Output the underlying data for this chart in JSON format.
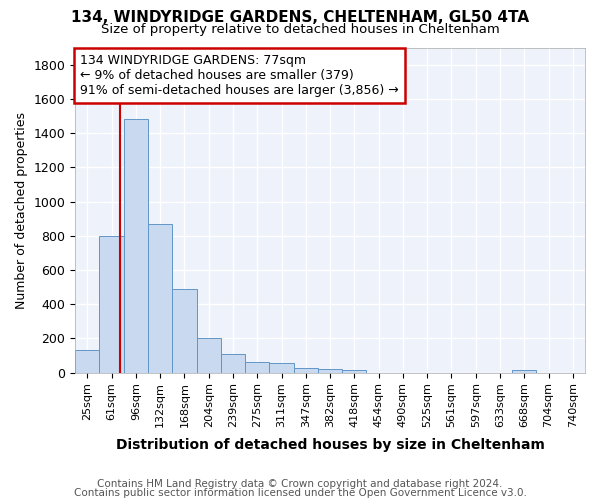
{
  "title1": "134, WINDYRIDGE GARDENS, CHELTENHAM, GL50 4TA",
  "title2": "Size of property relative to detached houses in Cheltenham",
  "xlabel": "Distribution of detached houses by size in Cheltenham",
  "ylabel": "Number of detached properties",
  "categories": [
    "25sqm",
    "61sqm",
    "96sqm",
    "132sqm",
    "168sqm",
    "204sqm",
    "239sqm",
    "275sqm",
    "311sqm",
    "347sqm",
    "382sqm",
    "418sqm",
    "454sqm",
    "490sqm",
    "525sqm",
    "561sqm",
    "597sqm",
    "633sqm",
    "668sqm",
    "704sqm",
    "740sqm"
  ],
  "values": [
    130,
    800,
    1480,
    870,
    490,
    205,
    110,
    65,
    55,
    30,
    20,
    15,
    0,
    0,
    0,
    0,
    0,
    0,
    15,
    0,
    0
  ],
  "bar_color": "#c9d9ef",
  "bar_edge_color": "#6096c8",
  "red_line_x": 1.35,
  "annotation_text": "134 WINDYRIDGE GARDENS: 77sqm\n← 9% of detached houses are smaller (379)\n91% of semi-detached houses are larger (3,856) →",
  "annotation_box_color": "#ffffff",
  "annotation_box_edge_color": "#cc0000",
  "footer1": "Contains HM Land Registry data © Crown copyright and database right 2024.",
  "footer2": "Contains public sector information licensed under the Open Government Licence v3.0.",
  "ylim": [
    0,
    1900
  ],
  "yticks": [
    0,
    200,
    400,
    600,
    800,
    1000,
    1200,
    1400,
    1600,
    1800
  ],
  "bg_color": "#ffffff",
  "plot_bg_color": "#eef2fa",
  "grid_color": "#ffffff",
  "title1_fontsize": 11,
  "title2_fontsize": 9.5,
  "xlabel_fontsize": 10,
  "ylabel_fontsize": 9,
  "tick_fontsize": 8,
  "annotation_fontsize": 9,
  "footer_fontsize": 7.5
}
